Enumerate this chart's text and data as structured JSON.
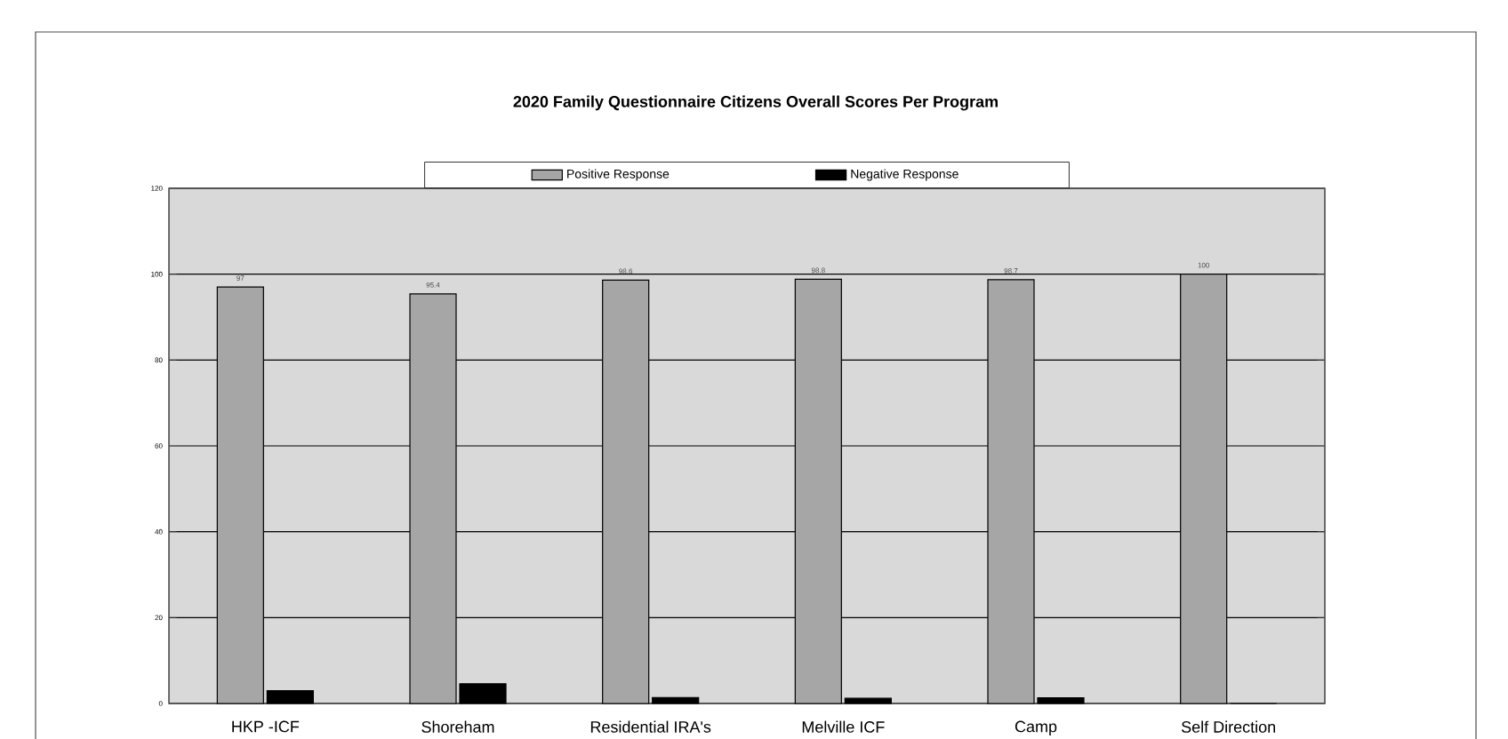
{
  "chart_data": {
    "type": "bar",
    "title": "2020 Family Questionnaire Citizens Overall Scores Per Program",
    "categories": [
      "HKP -ICF",
      "Shoreham",
      "Residential IRA's",
      "Melville ICF",
      "Camp",
      "Self Direction"
    ],
    "series": [
      {
        "name": "Positive Response",
        "color": "#a6a6a6",
        "values": [
          97,
          95.4,
          98.6,
          98.8,
          98.7,
          100
        ],
        "value_labels": [
          "97",
          "95.4",
          "98.6",
          "98.8",
          "98.7",
          "100"
        ]
      },
      {
        "name": "Negative Response",
        "color": "#000000",
        "values": [
          3,
          4.6,
          1.4,
          1.2,
          1.3,
          0
        ]
      }
    ],
    "ylim": [
      0,
      120
    ],
    "yticks": [
      0,
      20,
      40,
      60,
      80,
      100,
      120
    ],
    "grid": "y",
    "legend": "top"
  }
}
